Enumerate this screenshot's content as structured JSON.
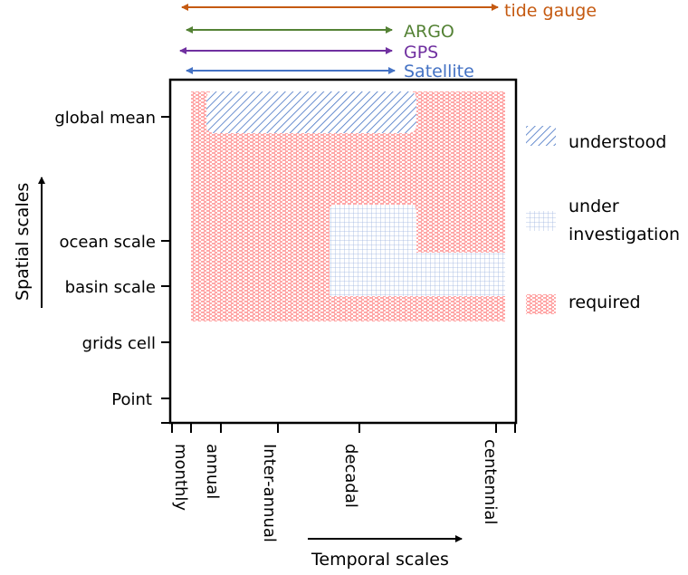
{
  "instruments": [
    {
      "label": "tide gauge",
      "color": "#c55a11"
    },
    {
      "label": "ARGO",
      "color": "#548235"
    },
    {
      "label": "GPS",
      "color": "#7030a0"
    },
    {
      "label": "Satellite",
      "color": "#4472c4"
    }
  ],
  "y_axis": {
    "title": "Spatial scales",
    "ticks": [
      "global mean",
      "ocean scale",
      "basin scale",
      "grids cell",
      "Point"
    ]
  },
  "x_axis": {
    "title": "Temporal scales",
    "ticks": [
      "monthly",
      "annual",
      "Inter-annual",
      "decadal",
      "centennial"
    ]
  },
  "legend": [
    {
      "label": "understood",
      "color": "#4472c4"
    },
    {
      "label": "under investigation",
      "line1": "under",
      "line2": "investigation",
      "color": "#8faadc"
    },
    {
      "label": "required",
      "color": "#ff0000"
    }
  ]
}
